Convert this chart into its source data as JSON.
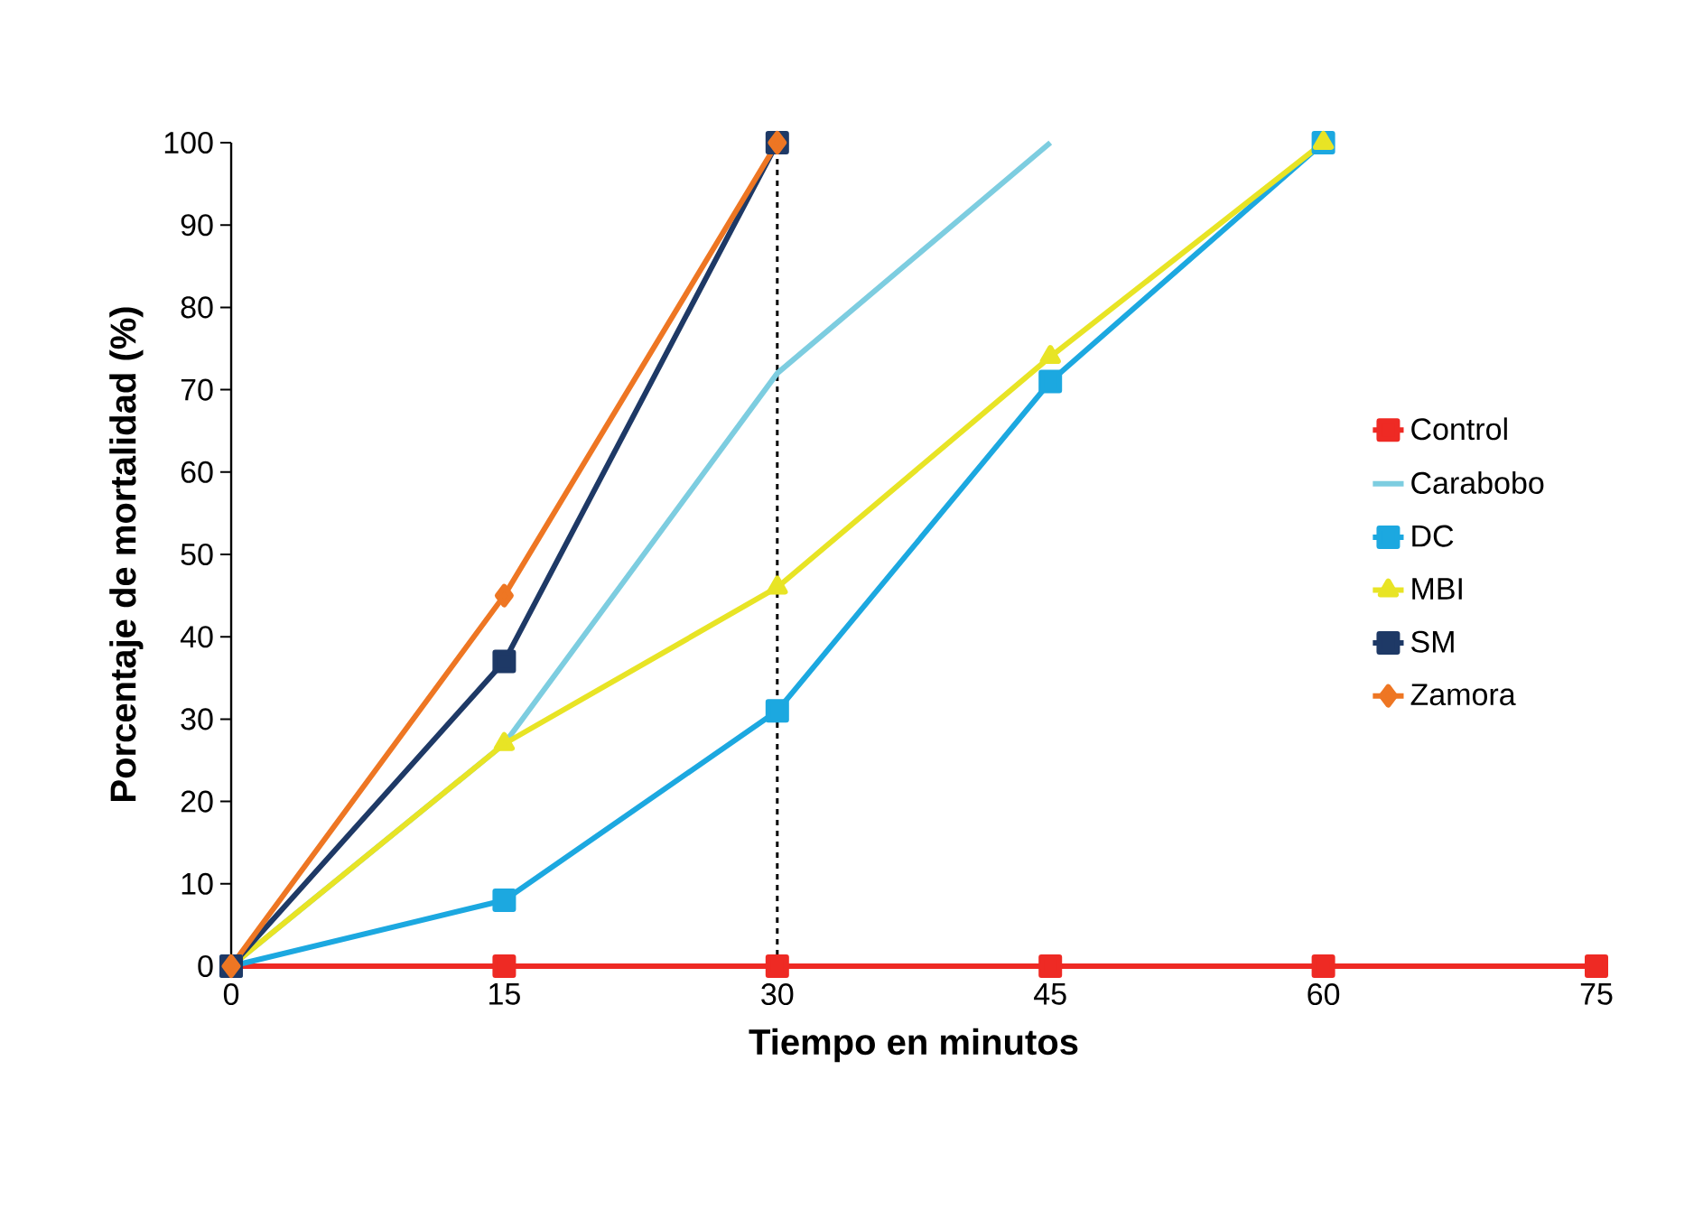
{
  "chart_data": {
    "type": "line",
    "xlabel": "Tiempo en minutos",
    "ylabel": "Porcentaje de mortalidad  (%)",
    "xlim": [
      0,
      75
    ],
    "xticks": [
      0,
      15,
      30,
      45,
      60,
      75
    ],
    "ylim": [
      0,
      100
    ],
    "yticks": [
      0,
      10,
      20,
      30,
      40,
      50,
      60,
      70,
      80,
      90,
      100
    ],
    "grid": false,
    "legend": "right",
    "line_style": "solid",
    "series": [
      {
        "name": "Control",
        "color": "#ee2a24",
        "marker": "square",
        "x": [
          0,
          15,
          30,
          45,
          60,
          75
        ],
        "values": [
          0,
          0,
          0,
          0,
          0,
          0
        ]
      },
      {
        "name": "Carabobo",
        "color": "#7dcde0",
        "marker": "none",
        "x": [
          0,
          15,
          30,
          45
        ],
        "values": [
          0,
          27,
          72,
          100
        ]
      },
      {
        "name": "DC",
        "color": "#1ca8e0",
        "marker": "square",
        "x": [
          0,
          15,
          30,
          45,
          60
        ],
        "values": [
          0,
          8,
          31,
          71,
          100
        ]
      },
      {
        "name": "MBI",
        "color": "#e8e425",
        "marker": "triangle",
        "x": [
          0,
          15,
          30,
          45,
          60
        ],
        "values": [
          0,
          27,
          46,
          74,
          100
        ]
      },
      {
        "name": "SM",
        "color": "#1e3966",
        "marker": "square",
        "x": [
          0,
          15,
          30
        ],
        "values": [
          0,
          37,
          100
        ]
      },
      {
        "name": "Zamora",
        "color": "#ee7623",
        "marker": "diamond",
        "x": [
          0,
          15,
          30
        ],
        "values": [
          0,
          45,
          100
        ]
      }
    ],
    "ref_lines": [
      {
        "axis": "x",
        "value": 30,
        "color": "#000000",
        "line_style": "dashed"
      }
    ]
  }
}
